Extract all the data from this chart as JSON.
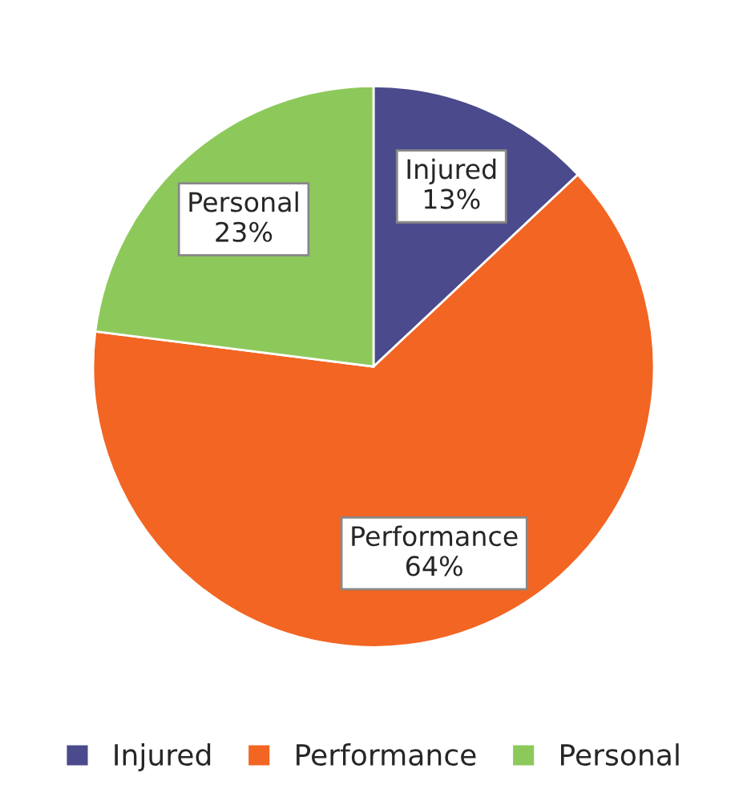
{
  "chart_data": {
    "type": "pie",
    "categories": [
      "Injured",
      "Performance",
      "Personal"
    ],
    "values": [
      13,
      64,
      23
    ],
    "colors": [
      "#4a4a8c",
      "#f26522",
      "#8dc95a"
    ],
    "value_labels": [
      "13%",
      "64%",
      "23%"
    ],
    "legend": "bottom"
  }
}
